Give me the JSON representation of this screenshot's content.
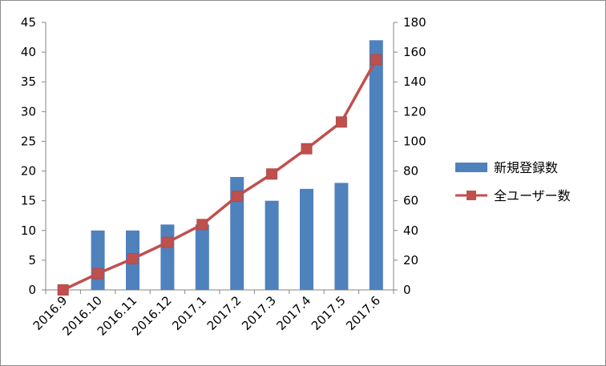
{
  "chart_data": {
    "type": "bar",
    "categories": [
      "2016.9",
      "2016.10",
      "2016.11",
      "2016.12",
      "2017.1",
      "2017.2",
      "2017.3",
      "2017.4",
      "2017.5",
      "2017.6"
    ],
    "series": [
      {
        "name": "新規登録数",
        "type": "bar",
        "axis": "left",
        "color": "#4f81bd",
        "values": [
          0,
          10,
          10,
          11,
          11,
          19,
          15,
          17,
          18,
          42
        ]
      },
      {
        "name": "全ユーザー数",
        "type": "line",
        "axis": "right",
        "color": "#c0504d",
        "marker": "square",
        "values": [
          0,
          11,
          21,
          32,
          44,
          63,
          78,
          95,
          113,
          155
        ]
      }
    ],
    "left_axis": {
      "ylim": [
        0,
        45
      ],
      "ticks": [
        0,
        5,
        10,
        15,
        20,
        25,
        30,
        35,
        40,
        45
      ]
    },
    "right_axis": {
      "ylim": [
        0,
        180
      ],
      "ticks": [
        0,
        20,
        40,
        60,
        80,
        100,
        120,
        140,
        160,
        180
      ]
    },
    "x_tick_rotation": -45,
    "grid": false,
    "legend_position": "right"
  }
}
